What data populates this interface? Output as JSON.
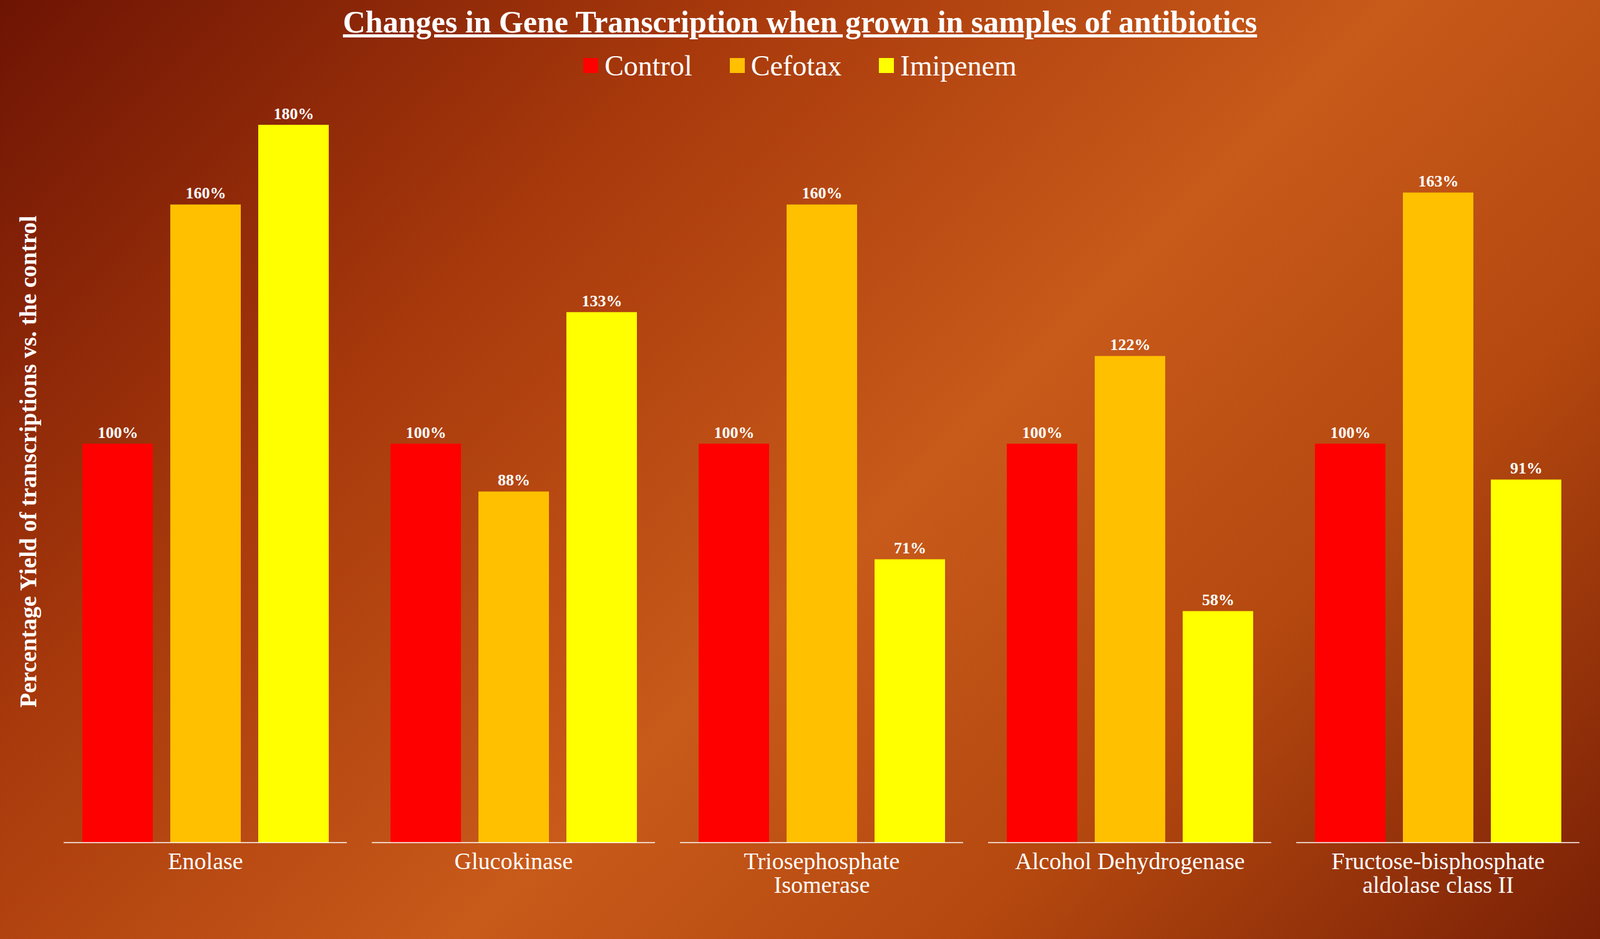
{
  "chart_data": {
    "type": "bar",
    "title": "Changes in Gene Transcription when grown in samples of antibiotics",
    "y_label": "Percentage Yield of transcriptions vs. the control",
    "categories": [
      "Enolase",
      "Glucokinase",
      "Triosephosphate Isomerase",
      "Alcohol Dehydrogenase",
      "Fructose-bisphosphate aldolase class II"
    ],
    "series": [
      {
        "name": "Control",
        "color": "#ff0000",
        "values": [
          100,
          100,
          100,
          100,
          100
        ],
        "value_labels": [
          "100%",
          "100%",
          "100%",
          "100%",
          "100%"
        ]
      },
      {
        "name": "Cefotax",
        "color": "#ffc000",
        "values": [
          160,
          88,
          160,
          122,
          163
        ],
        "value_labels": [
          "160%",
          "88%",
          "160%",
          "122%",
          "163%"
        ]
      },
      {
        "name": "Imipenem",
        "color": "#ffff00",
        "values": [
          180,
          133,
          71,
          58,
          91
        ],
        "value_labels": [
          "180%",
          "133%",
          "71%",
          "58%",
          "91%"
        ]
      }
    ],
    "ylim": [
      0,
      180
    ],
    "tick_labels": "x",
    "data_labels": true,
    "legend": "top"
  }
}
